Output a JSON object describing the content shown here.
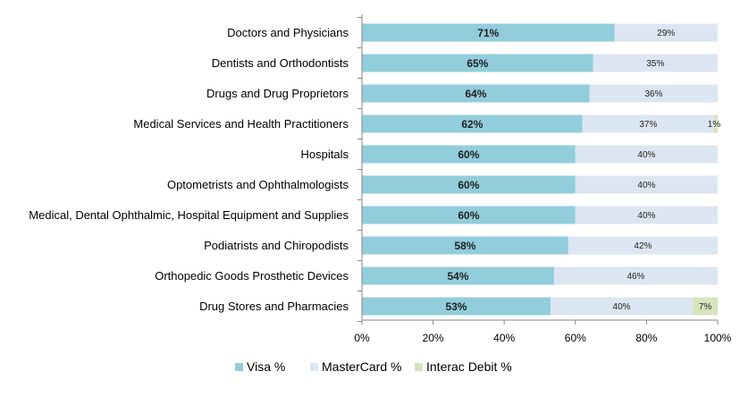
{
  "chart_data": {
    "type": "bar",
    "orientation": "horizontal",
    "stacked": true,
    "title": "",
    "xlabel": "",
    "ylabel": "",
    "xlim": [
      0,
      100
    ],
    "x_ticks": [
      "0%",
      "20%",
      "40%",
      "60%",
      "80%",
      "100%"
    ],
    "categories": [
      "Doctors and Physicians",
      "Dentists and Orthodontists",
      "Drugs and  Drug Proprietors",
      "Medical Services and Health Practitioners",
      "Hospitals",
      "Optometrists and Ophthalmologists",
      "Medical, Dental Ophthalmic, Hospital Equipment and Supplies",
      "Podiatrists and Chiropodists",
      "Orthopedic Goods Prosthetic Devices",
      "Drug Stores and Pharmacies"
    ],
    "series": [
      {
        "name": "Visa %",
        "color": "#92cddc",
        "values": [
          71,
          65,
          64,
          62,
          60,
          60,
          60,
          58,
          54,
          53
        ],
        "labels": [
          "71%",
          "65%",
          "64%",
          "62%",
          "60%",
          "60%",
          "60%",
          "58%",
          "54%",
          "53%"
        ]
      },
      {
        "name": "MasterCard %",
        "color": "#dce6f2",
        "values": [
          29,
          35,
          36,
          37,
          40,
          40,
          40,
          42,
          46,
          40
        ],
        "labels": [
          "29%",
          "35%",
          "36%",
          "37%",
          "40%",
          "40%",
          "40%",
          "42%",
          "46%",
          "40%"
        ]
      },
      {
        "name": "Interac Debit %",
        "color": "#d7e4bd",
        "values": [
          0,
          0,
          0,
          1,
          0,
          0,
          0,
          0,
          0,
          7
        ],
        "labels": [
          "",
          "",
          "",
          "1%",
          "",
          "",
          "",
          "",
          "",
          "7%"
        ]
      }
    ],
    "legend_position": "bottom",
    "grid": false
  }
}
